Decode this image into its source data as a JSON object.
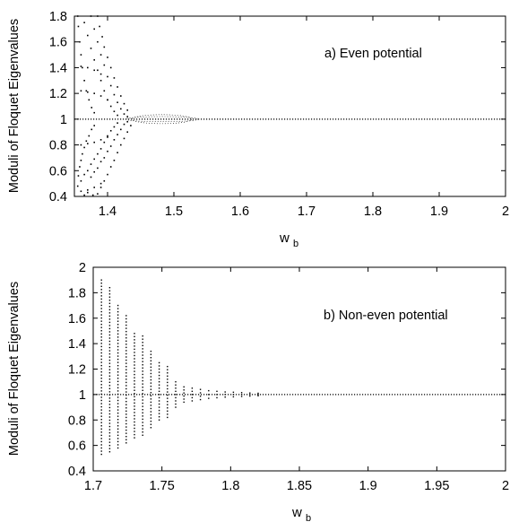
{
  "chart_data": [
    {
      "type": "scatter",
      "panel_label": "a) Even potential",
      "xlabel": "w",
      "xlabel_sub": "b",
      "ylabel": "Moduli of Floquet Eigenvalues",
      "xlim": [
        1.35,
        2.0
      ],
      "ylim": [
        0.4,
        1.8
      ],
      "x_ticks": [
        "1.4",
        "1.5",
        "1.6",
        "1.7",
        "1.8",
        "1.9",
        "2"
      ],
      "x_tick_values": [
        1.4,
        1.5,
        1.6,
        1.7,
        1.8,
        1.9,
        2.0
      ],
      "y_ticks": [
        "0.4",
        "0.6",
        "0.8",
        "1",
        "1.2",
        "1.4",
        "1.6",
        "1.8"
      ],
      "y_tick_values": [
        0.4,
        0.6,
        0.8,
        1.0,
        1.2,
        1.4,
        1.6,
        1.8
      ],
      "grid": false,
      "series": [
        {
          "values_description_free": true,
          "points": [
            [
              1.355,
              1.8
            ],
            [
              1.356,
              1.72
            ],
            [
              1.358,
              1.6
            ],
            [
              1.36,
              1.5
            ],
            [
              1.362,
              1.4
            ],
            [
              1.365,
              1.3
            ],
            [
              1.368,
              1.22
            ],
            [
              1.372,
              1.15
            ],
            [
              1.376,
              1.09
            ],
            [
              1.38,
              1.05
            ],
            [
              1.365,
              1.75
            ],
            [
              1.37,
              1.65
            ],
            [
              1.375,
              1.55
            ],
            [
              1.38,
              1.46
            ],
            [
              1.385,
              1.38
            ],
            [
              1.39,
              1.3
            ],
            [
              1.395,
              1.22
            ],
            [
              1.4,
              1.15
            ],
            [
              1.405,
              1.1
            ],
            [
              1.41,
              1.06
            ],
            [
              1.415,
              1.03
            ],
            [
              1.375,
              1.8
            ],
            [
              1.38,
              1.7
            ],
            [
              1.385,
              1.6
            ],
            [
              1.39,
              1.5
            ],
            [
              1.395,
              1.42
            ],
            [
              1.4,
              1.33
            ],
            [
              1.405,
              1.26
            ],
            [
              1.41,
              1.19
            ],
            [
              1.415,
              1.13
            ],
            [
              1.42,
              1.08
            ],
            [
              1.425,
              1.04
            ],
            [
              1.43,
              1.02
            ],
            [
              1.385,
              1.8
            ],
            [
              1.388,
              1.72
            ],
            [
              1.392,
              1.64
            ],
            [
              1.395,
              1.56
            ],
            [
              1.4,
              1.48
            ],
            [
              1.405,
              1.4
            ],
            [
              1.41,
              1.32
            ],
            [
              1.415,
              1.25
            ],
            [
              1.42,
              1.18
            ],
            [
              1.425,
              1.12
            ],
            [
              1.43,
              1.07
            ],
            [
              1.36,
              1.22
            ],
            [
              1.37,
              1.21
            ],
            [
              1.38,
              1.2
            ],
            [
              1.39,
              1.18
            ],
            [
              1.4,
              1.15
            ],
            [
              1.36,
              1.41
            ],
            [
              1.37,
              1.4
            ],
            [
              1.38,
              1.38
            ],
            [
              1.39,
              1.35
            ],
            [
              1.356,
              0.56
            ],
            [
              1.358,
              0.63
            ],
            [
              1.36,
              0.68
            ],
            [
              1.362,
              0.73
            ],
            [
              1.365,
              0.78
            ],
            [
              1.368,
              0.83
            ],
            [
              1.372,
              0.87
            ],
            [
              1.376,
              0.92
            ],
            [
              1.38,
              0.95
            ],
            [
              1.365,
              0.57
            ],
            [
              1.37,
              0.6
            ],
            [
              1.375,
              0.65
            ],
            [
              1.38,
              0.69
            ],
            [
              1.385,
              0.73
            ],
            [
              1.39,
              0.77
            ],
            [
              1.395,
              0.82
            ],
            [
              1.4,
              0.87
            ],
            [
              1.405,
              0.91
            ],
            [
              1.41,
              0.94
            ],
            [
              1.415,
              0.97
            ],
            [
              1.375,
              0.55
            ],
            [
              1.38,
              0.59
            ],
            [
              1.385,
              0.62
            ],
            [
              1.39,
              0.67
            ],
            [
              1.395,
              0.7
            ],
            [
              1.4,
              0.75
            ],
            [
              1.405,
              0.79
            ],
            [
              1.41,
              0.84
            ],
            [
              1.415,
              0.88
            ],
            [
              1.42,
              0.92
            ],
            [
              1.425,
              0.96
            ],
            [
              1.43,
              0.98
            ],
            [
              1.385,
              0.42
            ],
            [
              1.39,
              0.47
            ],
            [
              1.395,
              0.52
            ],
            [
              1.4,
              0.57
            ],
            [
              1.405,
              0.63
            ],
            [
              1.41,
              0.68
            ],
            [
              1.415,
              0.74
            ],
            [
              1.42,
              0.8
            ],
            [
              1.425,
              0.85
            ],
            [
              1.43,
              0.9
            ],
            [
              1.435,
              0.95
            ],
            [
              1.36,
              0.8
            ],
            [
              1.37,
              0.81
            ],
            [
              1.38,
              0.82
            ],
            [
              1.39,
              0.84
            ],
            [
              1.4,
              0.86
            ],
            [
              1.36,
              0.44
            ],
            [
              1.37,
              0.45
            ],
            [
              1.38,
              0.47
            ],
            [
              1.39,
              0.5
            ],
            [
              1.355,
              0.48
            ],
            [
              1.36,
              0.52
            ],
            [
              1.365,
              0.41
            ],
            [
              1.37,
              0.43
            ],
            [
              1.378,
              0.41
            ]
          ]
        }
      ],
      "unit_line": {
        "y": 1.0,
        "x_start": 1.35,
        "x_end": 2.0
      },
      "loops": [
        {
          "x_center": 1.482,
          "half_width": 0.045,
          "dy": 0.035
        },
        {
          "x_center": 1.482,
          "half_width": 0.055,
          "dy": 0.02
        }
      ]
    },
    {
      "type": "scatter",
      "panel_label": "b) Non-even potential",
      "xlabel": "w",
      "xlabel_sub": "b",
      "ylabel": "Moduli of Floquet Eigenvalues",
      "xlim": [
        1.7,
        2.0
      ],
      "ylim": [
        0.4,
        2.0
      ],
      "x_ticks": [
        "1.7",
        "1.75",
        "1.8",
        "1.85",
        "1.9",
        "1.95",
        "2"
      ],
      "x_tick_values": [
        1.7,
        1.75,
        1.8,
        1.85,
        1.9,
        1.95,
        2.0
      ],
      "y_ticks": [
        "0.4",
        "0.6",
        "0.8",
        "1",
        "1.2",
        "1.4",
        "1.6",
        "1.8",
        "2"
      ],
      "y_tick_values": [
        0.4,
        0.6,
        0.8,
        1.0,
        1.2,
        1.4,
        1.6,
        1.8,
        2.0
      ],
      "grid": false,
      "columns": [
        {
          "x": 1.706,
          "ymax": 1.9,
          "ymin": 0.53
        },
        {
          "x": 1.712,
          "ymax": 1.84,
          "ymin": 0.55
        },
        {
          "x": 1.718,
          "ymax": 1.7,
          "ymin": 0.58
        },
        {
          "x": 1.724,
          "ymax": 1.62,
          "ymin": 0.62
        },
        {
          "x": 1.73,
          "ymax": 1.48,
          "ymin": 0.66
        },
        {
          "x": 1.736,
          "ymax": 1.46,
          "ymin": 0.68
        },
        {
          "x": 1.742,
          "ymax": 1.34,
          "ymin": 0.74
        },
        {
          "x": 1.748,
          "ymax": 1.25,
          "ymin": 0.8
        },
        {
          "x": 1.754,
          "ymax": 1.22,
          "ymin": 0.82
        },
        {
          "x": 1.76,
          "ymax": 1.1,
          "ymin": 0.9
        },
        {
          "x": 1.766,
          "ymax": 1.06,
          "ymin": 0.94
        },
        {
          "x": 1.772,
          "ymax": 1.05,
          "ymin": 0.95
        },
        {
          "x": 1.778,
          "ymax": 1.04,
          "ymin": 0.96
        },
        {
          "x": 1.784,
          "ymax": 1.03,
          "ymin": 0.97
        },
        {
          "x": 1.79,
          "ymax": 1.025,
          "ymin": 0.975
        },
        {
          "x": 1.796,
          "ymax": 1.02,
          "ymin": 0.98
        },
        {
          "x": 1.802,
          "ymax": 1.018,
          "ymin": 0.982
        },
        {
          "x": 1.808,
          "ymax": 1.015,
          "ymin": 0.985
        },
        {
          "x": 1.814,
          "ymax": 1.012,
          "ymin": 0.988
        },
        {
          "x": 1.82,
          "ymax": 1.01,
          "ymin": 0.99
        }
      ],
      "unit_line": {
        "y": 1.0,
        "x_start": 1.7,
        "x_end": 2.0
      }
    }
  ]
}
